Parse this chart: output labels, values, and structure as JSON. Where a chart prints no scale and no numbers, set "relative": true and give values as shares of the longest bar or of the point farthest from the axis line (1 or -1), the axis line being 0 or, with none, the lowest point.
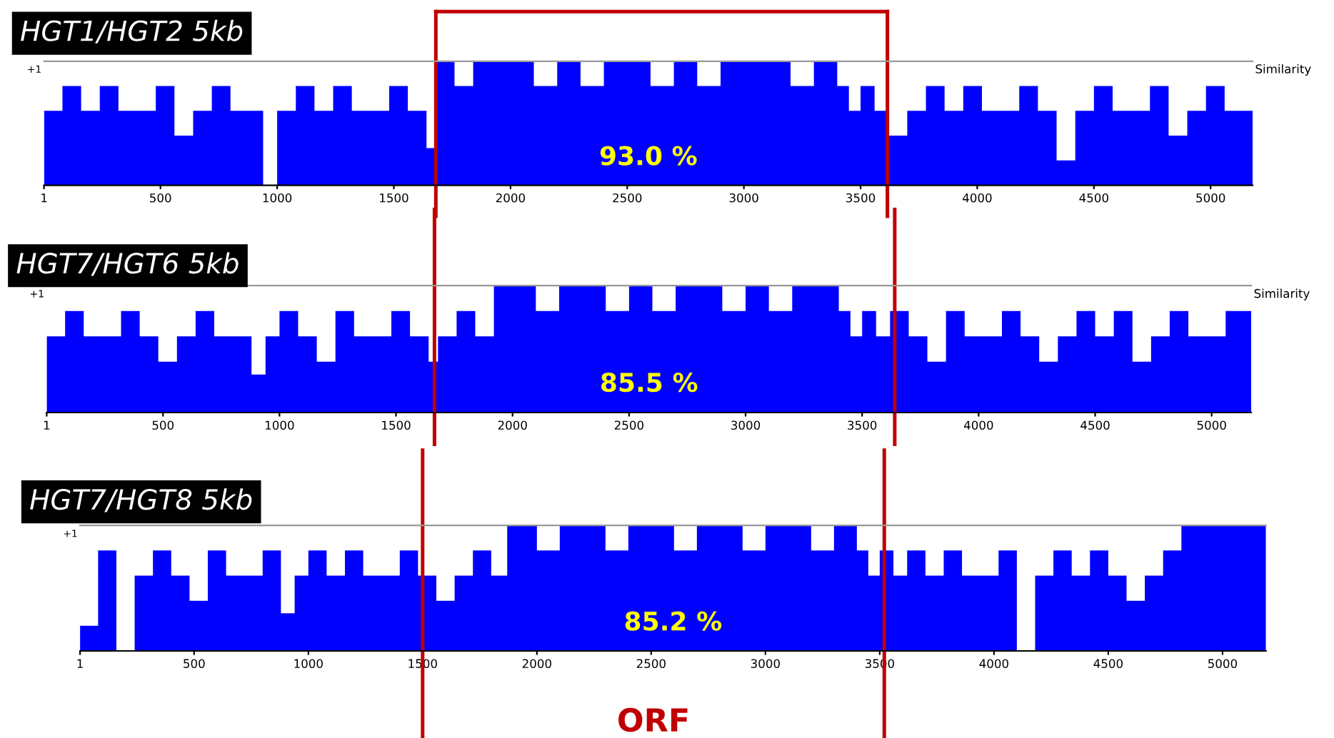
{
  "chart_data": [
    {
      "type": "area",
      "title": "HGT1/HGT2 5kb",
      "ylabel": "Similarity",
      "relative": true,
      "color": "#0000ff",
      "xlim": [
        1,
        5180
      ],
      "xticks": [
        1,
        500,
        1000,
        1500,
        2000,
        2500,
        3000,
        3500,
        4000,
        4500,
        5000
      ],
      "x": [
        1,
        80,
        160,
        240,
        320,
        400,
        480,
        560,
        640,
        720,
        800,
        880,
        940,
        1000,
        1080,
        1160,
        1240,
        1320,
        1400,
        1480,
        1560,
        1640,
        1680,
        1760,
        1840,
        1920,
        2000,
        2100,
        2200,
        2300,
        2400,
        2500,
        2600,
        2700,
        2800,
        2900,
        3000,
        3100,
        3200,
        3300,
        3400,
        3450,
        3500,
        3560,
        3620,
        3700,
        3780,
        3860,
        3940,
        4020,
        4100,
        4180,
        4260,
        4340,
        4420,
        4500,
        4580,
        4660,
        4740,
        4820,
        4900,
        4980,
        5060,
        5180
      ],
      "values": [
        0.6,
        0.8,
        0.6,
        0.8,
        0.6,
        0.6,
        0.8,
        0.4,
        0.6,
        0.8,
        0.6,
        0.6,
        0.0,
        0.6,
        0.8,
        0.6,
        0.8,
        0.6,
        0.6,
        0.8,
        0.6,
        0.3,
        1.0,
        0.8,
        1.0,
        1.0,
        1.0,
        0.8,
        1.0,
        0.8,
        1.0,
        1.0,
        0.8,
        1.0,
        0.8,
        1.0,
        1.0,
        1.0,
        0.8,
        1.0,
        0.8,
        0.6,
        0.8,
        0.6,
        0.4,
        0.6,
        0.8,
        0.6,
        0.8,
        0.6,
        0.6,
        0.8,
        0.6,
        0.2,
        0.6,
        0.8,
        0.6,
        0.6,
        0.8,
        0.4,
        0.6,
        0.8,
        0.6,
        0.6
      ],
      "ref_lines": [
        {
          "axis": "x",
          "value": 1680,
          "color": "#c00000"
        },
        {
          "axis": "x",
          "value": 3615,
          "color": "#c00000"
        }
      ],
      "annotations": [
        "93.0 %",
        "+1"
      ]
    },
    {
      "type": "area",
      "title": "HGT7/HGT6 5kb",
      "ylabel": "Similarity",
      "relative": true,
      "color": "#0000ff",
      "xlim": [
        1,
        5170
      ],
      "xticks": [
        1,
        500,
        1000,
        1500,
        2000,
        2500,
        3000,
        3500,
        4000,
        4500,
        5000
      ],
      "x": [
        1,
        80,
        160,
        240,
        320,
        400,
        480,
        560,
        640,
        720,
        800,
        880,
        940,
        1000,
        1080,
        1160,
        1240,
        1320,
        1400,
        1480,
        1560,
        1640,
        1680,
        1760,
        1840,
        1920,
        2000,
        2100,
        2200,
        2300,
        2400,
        2500,
        2600,
        2700,
        2800,
        2900,
        3000,
        3100,
        3200,
        3300,
        3400,
        3450,
        3500,
        3560,
        3620,
        3700,
        3780,
        3860,
        3940,
        4020,
        4100,
        4180,
        4260,
        4340,
        4420,
        4500,
        4580,
        4660,
        4740,
        4820,
        4900,
        4980,
        5060,
        5170
      ],
      "values": [
        0.6,
        0.8,
        0.6,
        0.6,
        0.8,
        0.6,
        0.4,
        0.6,
        0.8,
        0.6,
        0.6,
        0.3,
        0.6,
        0.8,
        0.6,
        0.4,
        0.8,
        0.6,
        0.6,
        0.8,
        0.6,
        0.4,
        0.6,
        0.8,
        0.6,
        1.0,
        1.0,
        0.8,
        1.0,
        1.0,
        0.8,
        1.0,
        0.8,
        1.0,
        1.0,
        0.8,
        1.0,
        0.8,
        1.0,
        1.0,
        0.8,
        0.6,
        0.8,
        0.6,
        0.8,
        0.6,
        0.4,
        0.8,
        0.6,
        0.6,
        0.8,
        0.6,
        0.4,
        0.6,
        0.8,
        0.6,
        0.8,
        0.4,
        0.6,
        0.8,
        0.6,
        0.6,
        0.8,
        0.4
      ],
      "ref_lines": [
        {
          "axis": "x",
          "value": 1665,
          "color": "#c00000"
        },
        {
          "axis": "x",
          "value": 3640,
          "color": "#c00000"
        }
      ],
      "annotations": [
        "85.5 %",
        "+1"
      ]
    },
    {
      "type": "area",
      "title": "HGT7/HGT8 5kb",
      "relative": true,
      "color": "#0000ff",
      "xlim": [
        1,
        5190
      ],
      "xticks": [
        1,
        500,
        1000,
        1500,
        2000,
        2500,
        3000,
        3500,
        4000,
        4500,
        5000
      ],
      "x": [
        1,
        80,
        160,
        240,
        320,
        400,
        480,
        560,
        640,
        720,
        800,
        880,
        940,
        1000,
        1080,
        1160,
        1240,
        1320,
        1400,
        1480,
        1560,
        1640,
        1720,
        1800,
        1870,
        1920,
        2000,
        2100,
        2200,
        2300,
        2400,
        2500,
        2600,
        2700,
        2800,
        2900,
        3000,
        3100,
        3200,
        3300,
        3400,
        3450,
        3500,
        3560,
        3620,
        3700,
        3780,
        3860,
        3940,
        4020,
        4100,
        4180,
        4260,
        4340,
        4420,
        4500,
        4580,
        4660,
        4740,
        4820,
        4900,
        4980,
        5060,
        5190
      ],
      "values": [
        0.2,
        0.8,
        0.0,
        0.6,
        0.8,
        0.6,
        0.4,
        0.8,
        0.6,
        0.6,
        0.8,
        0.3,
        0.6,
        0.8,
        0.6,
        0.8,
        0.6,
        0.6,
        0.8,
        0.6,
        0.4,
        0.6,
        0.8,
        0.6,
        1.0,
        1.0,
        0.8,
        1.0,
        1.0,
        0.8,
        1.0,
        1.0,
        0.8,
        1.0,
        1.0,
        0.8,
        1.0,
        1.0,
        0.8,
        1.0,
        0.8,
        0.6,
        0.8,
        0.6,
        0.8,
        0.6,
        0.8,
        0.6,
        0.6,
        0.8,
        0.0,
        0.6,
        0.8,
        0.6,
        0.8,
        0.6,
        0.4,
        0.6,
        0.8,
        1.0,
        1.0,
        1.0,
        1.0,
        0.2
      ],
      "ref_lines": [
        {
          "axis": "x",
          "value": 1500,
          "color": "#c00000"
        },
        {
          "axis": "x",
          "value": 3520,
          "color": "#c00000"
        }
      ],
      "annotations": [
        "85.2 %",
        "+1",
        "ORF"
      ]
    }
  ]
}
